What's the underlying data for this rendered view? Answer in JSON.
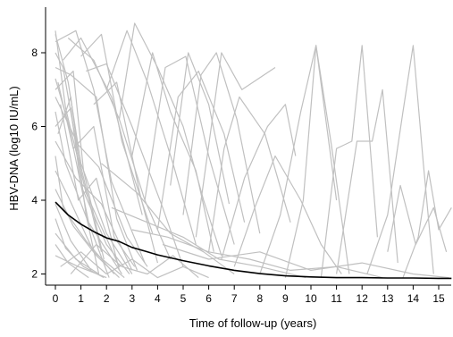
{
  "chart_data": {
    "type": "line",
    "title": "",
    "xlabel": "Time of follow-up (years)",
    "ylabel": "HBV-DNA (log10 IU/mL)",
    "xlim": [
      0,
      15.5
    ],
    "ylim": [
      1.75,
      9.2
    ],
    "x_ticks": [
      "0",
      "1",
      "2",
      "3",
      "4",
      "5",
      "6",
      "7",
      "8",
      "9",
      "10",
      "11",
      "12",
      "13",
      "14",
      "15"
    ],
    "y_ticks": [
      "2",
      "4",
      "6",
      "8"
    ],
    "grid": false,
    "legend": "none",
    "colors": {
      "individual": "#c0c0c0",
      "mean": "#000000",
      "axis": "#000000"
    },
    "series": [
      {
        "role": "mean",
        "x": [
          0,
          0.5,
          1,
          1.5,
          2,
          2.5,
          3,
          3.5,
          4,
          5,
          6,
          7,
          8,
          9,
          10,
          11,
          12,
          13,
          14,
          15,
          15.5
        ],
        "y": [
          3.95,
          3.6,
          3.35,
          3.15,
          2.98,
          2.88,
          2.72,
          2.62,
          2.52,
          2.36,
          2.22,
          2.1,
          2.01,
          1.95,
          1.92,
          1.9,
          1.9,
          1.89,
          1.89,
          1.88,
          1.88
        ]
      },
      {
        "role": "individual",
        "x": [
          0,
          0.5,
          1,
          2,
          3
        ],
        "y": [
          8.5,
          7.2,
          5.0,
          3.1,
          2.0
        ]
      },
      {
        "role": "individual",
        "x": [
          0,
          0.4,
          1.2,
          2.5
        ],
        "y": [
          8.6,
          6.5,
          4.2,
          2.2
        ]
      },
      {
        "role": "individual",
        "x": [
          0,
          0.8,
          1.5,
          2.2,
          3.5
        ],
        "y": [
          8.3,
          8.6,
          7.0,
          4.5,
          2.3
        ]
      },
      {
        "role": "individual",
        "x": [
          0,
          0.3,
          0.9,
          1.8
        ],
        "y": [
          8.0,
          7.6,
          5.2,
          2.6
        ]
      },
      {
        "role": "individual",
        "x": [
          0,
          0.6,
          1.6,
          2.4,
          3.2
        ],
        "y": [
          7.6,
          7.4,
          6.8,
          3.5,
          2.1
        ]
      },
      {
        "role": "individual",
        "x": [
          0,
          0.5,
          1.3,
          2.6
        ],
        "y": [
          7.3,
          6.1,
          3.4,
          2.0
        ]
      },
      {
        "role": "individual",
        "x": [
          0,
          0.7,
          1.1,
          1.9
        ],
        "y": [
          7.0,
          7.5,
          4.8,
          2.4
        ]
      },
      {
        "role": "individual",
        "x": [
          0,
          0.9,
          1.7,
          2.8,
          3.6
        ],
        "y": [
          6.8,
          5.5,
          4.9,
          3.0,
          2.2
        ]
      },
      {
        "role": "individual",
        "x": [
          0,
          0.4,
          1.4,
          2.1
        ],
        "y": [
          6.4,
          5.0,
          3.2,
          1.9
        ]
      },
      {
        "role": "individual",
        "x": [
          0,
          0.6,
          1.0,
          2.0,
          2.9
        ],
        "y": [
          6.0,
          6.5,
          4.4,
          2.8,
          2.0
        ]
      },
      {
        "role": "individual",
        "x": [
          0,
          0.8,
          1.8,
          3.0
        ],
        "y": [
          5.6,
          4.6,
          3.9,
          2.1
        ]
      },
      {
        "role": "individual",
        "x": [
          0,
          0.3,
          1.2,
          2.3
        ],
        "y": [
          5.2,
          3.8,
          2.9,
          2.0
        ]
      },
      {
        "role": "individual",
        "x": [
          0,
          0.5,
          1.5,
          2.7
        ],
        "y": [
          4.8,
          4.1,
          2.6,
          1.9
        ]
      },
      {
        "role": "individual",
        "x": [
          0,
          0.7,
          1.6,
          2.5
        ],
        "y": [
          4.3,
          3.3,
          2.5,
          1.9
        ]
      },
      {
        "role": "individual",
        "x": [
          0,
          0.6,
          1.4
        ],
        "y": [
          3.9,
          2.9,
          2.1
        ]
      },
      {
        "role": "individual",
        "x": [
          0,
          0.4,
          1.1,
          1.9
        ],
        "y": [
          3.5,
          2.7,
          2.2,
          1.9
        ]
      },
      {
        "role": "individual",
        "x": [
          0,
          0.8,
          1.7
        ],
        "y": [
          3.1,
          2.4,
          2.0
        ]
      },
      {
        "role": "individual",
        "x": [
          0,
          0.5,
          1.3
        ],
        "y": [
          2.8,
          2.3,
          1.9
        ]
      },
      {
        "role": "individual",
        "x": [
          0,
          0.9,
          2.0
        ],
        "y": [
          2.5,
          2.2,
          1.9
        ]
      },
      {
        "role": "individual",
        "x": [
          0.5,
          1.5,
          2.5,
          3.5,
          4.5
        ],
        "y": [
          8.4,
          7.8,
          6.2,
          4.0,
          2.4
        ]
      },
      {
        "role": "individual",
        "x": [
          1.0,
          1.8,
          2.6,
          3.8
        ],
        "y": [
          7.9,
          8.5,
          5.6,
          3.1
        ]
      },
      {
        "role": "individual",
        "x": [
          1.2,
          2.0,
          3.0,
          4.2,
          5.0
        ],
        "y": [
          7.5,
          7.7,
          6.0,
          3.8,
          2.2
        ]
      },
      {
        "role": "individual",
        "x": [
          0.3,
          1.0,
          2.2,
          3.4
        ],
        "y": [
          7.8,
          8.4,
          6.8,
          3.6
        ]
      },
      {
        "role": "individual",
        "x": [
          2.0,
          2.8,
          3.6,
          4.6,
          5.5
        ],
        "y": [
          7.0,
          8.6,
          7.2,
          5.0,
          2.8
        ]
      },
      {
        "role": "individual",
        "x": [
          1.5,
          2.4,
          3.3,
          4.0
        ],
        "y": [
          6.6,
          7.2,
          4.2,
          2.3
        ]
      },
      {
        "role": "individual",
        "x": [
          2.5,
          3.1,
          4.0,
          5.0,
          5.8,
          6.5
        ],
        "y": [
          6.2,
          8.8,
          7.6,
          6.0,
          4.0,
          2.5
        ]
      },
      {
        "role": "individual",
        "x": [
          3.0,
          3.8,
          4.5,
          5.5,
          6.2
        ],
        "y": [
          5.2,
          8.0,
          6.4,
          4.8,
          2.6
        ]
      },
      {
        "role": "individual",
        "x": [
          3.5,
          4.3,
          5.1,
          6.0,
          7.0
        ],
        "y": [
          4.0,
          7.6,
          7.9,
          5.2,
          2.8
        ]
      },
      {
        "role": "individual",
        "x": [
          4.0,
          4.8,
          5.6,
          6.6,
          7.4
        ],
        "y": [
          3.2,
          6.8,
          7.5,
          5.8,
          3.4
        ]
      },
      {
        "role": "individual",
        "x": [
          4.5,
          5.2,
          6.0,
          6.8
        ],
        "y": [
          4.4,
          8.0,
          6.6,
          3.9
        ]
      },
      {
        "role": "individual",
        "x": [
          5.0,
          5.7,
          6.3,
          7.1,
          8.0
        ],
        "y": [
          3.6,
          7.4,
          8.0,
          6.2,
          3.1
        ]
      },
      {
        "role": "individual",
        "x": [
          5.5,
          6.1,
          6.5,
          7.3,
          8.6
        ],
        "y": [
          3.0,
          6.0,
          8.0,
          7.0,
          7.6
        ]
      },
      {
        "role": "individual",
        "x": [
          6.0,
          6.6,
          7.2,
          8.2,
          9.2
        ],
        "y": [
          2.6,
          5.4,
          6.8,
          5.8,
          3.4
        ]
      },
      {
        "role": "individual",
        "x": [
          6.5,
          7.4,
          8.3,
          9.0,
          9.4
        ],
        "y": [
          2.4,
          4.6,
          6.0,
          6.6,
          5.2
        ]
      },
      {
        "role": "individual",
        "x": [
          7.0,
          7.8,
          8.6,
          9.6,
          10.4,
          11.2
        ],
        "y": [
          2.2,
          3.8,
          5.2,
          4.0,
          2.8,
          2.0
        ]
      },
      {
        "role": "individual",
        "x": [
          8.0,
          8.8,
          9.6,
          10.2,
          11.0
        ],
        "y": [
          2.0,
          3.6,
          6.4,
          8.2,
          4.0
        ]
      },
      {
        "role": "individual",
        "x": [
          9.0,
          9.7,
          10.2,
          10.8,
          11.5
        ],
        "y": [
          1.9,
          4.0,
          8.2,
          5.5,
          2.0
        ]
      },
      {
        "role": "individual",
        "x": [
          10.4,
          11.0,
          11.6,
          12.0,
          12.6
        ],
        "y": [
          1.9,
          5.4,
          5.6,
          8.2,
          3.0
        ]
      },
      {
        "role": "individual",
        "x": [
          11.0,
          11.8,
          12.4,
          12.8,
          13.4
        ],
        "y": [
          2.0,
          5.6,
          5.6,
          7.0,
          2.3
        ]
      },
      {
        "role": "individual",
        "x": [
          12.2,
          13.0,
          13.6,
          14.0,
          14.4,
          14.8
        ],
        "y": [
          2.0,
          3.6,
          6.4,
          8.2,
          5.0,
          2.0
        ]
      },
      {
        "role": "individual",
        "x": [
          13.0,
          13.5,
          14.1,
          14.8,
          15.3
        ],
        "y": [
          2.6,
          4.4,
          2.8,
          3.8,
          2.6
        ]
      },
      {
        "role": "individual",
        "x": [
          13.6,
          14.2,
          14.6,
          15.0,
          15.5
        ],
        "y": [
          1.9,
          3.0,
          4.8,
          3.2,
          3.8
        ]
      },
      {
        "role": "individual",
        "x": [
          1.8,
          3.2,
          4.5,
          5.8,
          7.0
        ],
        "y": [
          5.0,
          4.2,
          3.1,
          2.6,
          2.0
        ]
      },
      {
        "role": "individual",
        "x": [
          2.2,
          3.6,
          5.0,
          6.4,
          8.0,
          9.8
        ],
        "y": [
          3.8,
          3.4,
          3.0,
          2.4,
          2.2,
          1.9
        ]
      },
      {
        "role": "individual",
        "x": [
          3.0,
          4.4,
          6.0,
          7.6,
          9.2,
          11.0,
          12.8
        ],
        "y": [
          3.2,
          3.0,
          2.6,
          2.4,
          2.1,
          2.2,
          1.9
        ]
      },
      {
        "role": "individual",
        "x": [
          4.2,
          6.0,
          8.0,
          10.0,
          12.0,
          14.0,
          15.4
        ],
        "y": [
          2.8,
          2.4,
          2.6,
          2.1,
          2.3,
          2.0,
          1.9
        ]
      },
      {
        "role": "individual",
        "x": [
          0.2,
          1.0,
          2.0,
          3.0,
          4.0,
          5.0,
          6.0
        ],
        "y": [
          2.2,
          2.6,
          2.0,
          2.4,
          1.9,
          2.2,
          1.9
        ]
      },
      {
        "role": "individual",
        "x": [
          0.6,
          1.6,
          2.6,
          3.6,
          4.6,
          5.6
        ],
        "y": [
          2.0,
          2.8,
          2.2,
          2.0,
          2.5,
          1.9
        ]
      },
      {
        "role": "individual",
        "x": [
          0.1,
          0.7,
          1.5,
          2.3,
          3.1
        ],
        "y": [
          7.2,
          5.4,
          6.0,
          3.0,
          2.2
        ]
      },
      {
        "role": "individual",
        "x": [
          0.2,
          0.9,
          1.6,
          2.5
        ],
        "y": [
          6.6,
          4.0,
          4.6,
          2.1
        ]
      },
      {
        "role": "individual",
        "x": [
          0.1,
          0.6,
          1.2,
          1.7
        ],
        "y": [
          5.8,
          6.8,
          3.6,
          2.0
        ]
      }
    ]
  }
}
